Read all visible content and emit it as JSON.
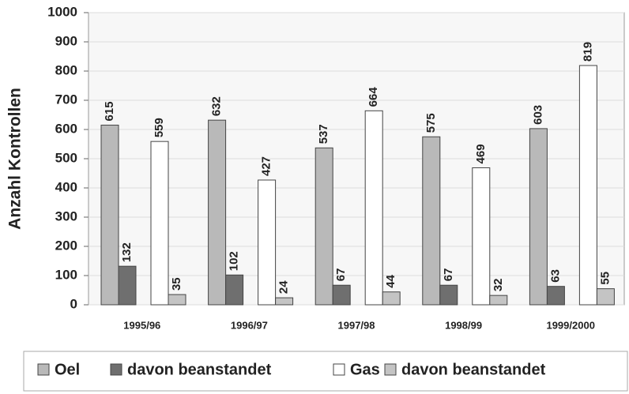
{
  "chart_data": {
    "type": "bar",
    "y_label": "Anzahl Kontrollen",
    "categories": [
      "1995/96",
      "1996/97",
      "1997/98",
      "1998/99",
      "1999/2000"
    ],
    "series": [
      {
        "name": "Oel",
        "color": "#b9b9b9",
        "values": [
          615,
          632,
          537,
          575,
          603
        ]
      },
      {
        "name": "davon beanstandet",
        "color": "#6f6f6f",
        "values": [
          132,
          102,
          67,
          67,
          63
        ]
      },
      {
        "name": "Gas",
        "color": "#ffffff",
        "values": [
          559,
          427,
          664,
          469,
          819
        ]
      },
      {
        "name": "davon beanstandet",
        "color": "#c4c4c4",
        "values": [
          35,
          24,
          44,
          32,
          55
        ]
      }
    ],
    "ylim": [
      0,
      1000
    ],
    "yticks": [
      0,
      100,
      200,
      300,
      400,
      500,
      600,
      700,
      800,
      900,
      1000
    ],
    "grid": true,
    "legend": "bottom"
  }
}
